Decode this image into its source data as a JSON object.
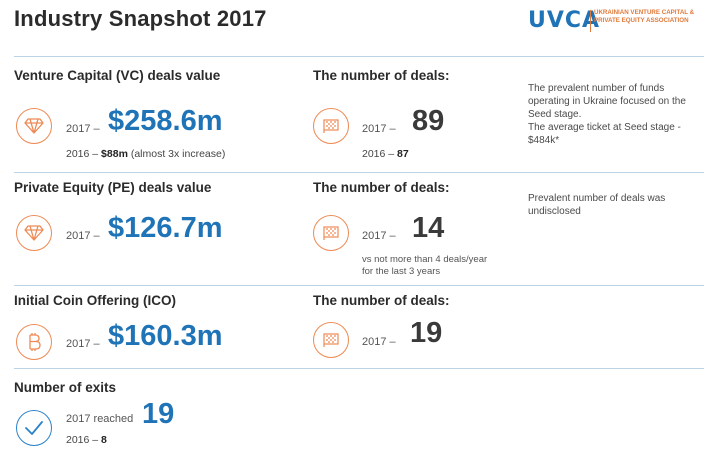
{
  "header": {
    "title": "Industry Snapshot 2017",
    "logo_mark": "UVCA",
    "logo_text": "Ukrainian Venture Capital & Private Equity Association"
  },
  "vc": {
    "label": "Venture Capital (VC) deals value",
    "year": "2017 –",
    "value": "$258.6m",
    "prev_year": "2016 –",
    "prev_value": "$88m",
    "prev_note": "(almost 3x increase)",
    "deals_label": "The number of deals:",
    "deals_year": "2017 –",
    "deals_value": "89",
    "deals_prev": "2016 –",
    "deals_prev_value": "87",
    "note": "The prevalent number of funds operating in Ukraine focused on the Seed stage.\nThe average ticket at Seed stage - $484k*"
  },
  "pe": {
    "label": "Private Equity (PE) deals value",
    "year": "2017 –",
    "value": "$126.7m",
    "deals_label": "The number of deals:",
    "deals_year": "2017 –",
    "deals_value": "14",
    "deals_sub": "vs not more than 4 deals/year for the last 3 years",
    "note": "Prevalent number of deals was undisclosed"
  },
  "ico": {
    "label": "Initial Coin Offering (ICO)",
    "year": "2017 –",
    "value": "$160.3m",
    "deals_label": "The number of deals:",
    "deals_year": "2017 –",
    "deals_value": "19"
  },
  "exits": {
    "label": "Number of exits",
    "year": "2017 reached",
    "value": "19",
    "prev_year": "2016 –",
    "prev_value": "8"
  },
  "colors": {
    "accent_blue": "#1f73b7",
    "accent_orange": "#ee8a55",
    "separator": "#bcd3e6"
  },
  "icons": [
    "diamond-icon",
    "flag-icon",
    "bitcoin-icon",
    "checkmark-icon"
  ]
}
